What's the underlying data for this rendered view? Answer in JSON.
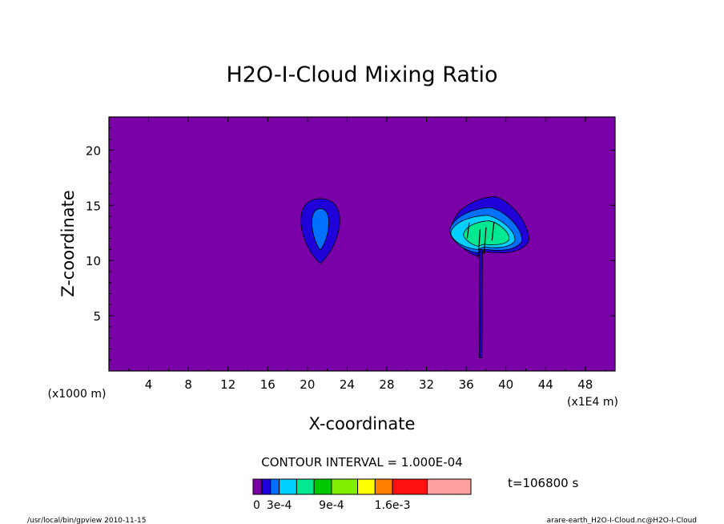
{
  "chart_data": {
    "type": "heatmap",
    "title": "H2O-I-Cloud Mixing Ratio",
    "xlabel": "X-coordinate",
    "ylabel": "Z-coordinate",
    "x_unit_left": "(x1000 m)",
    "x_unit_right": "(x1E4 m)",
    "xlim": [
      0,
      51
    ],
    "ylim": [
      0,
      23
    ],
    "x_ticks": [
      4,
      8,
      12,
      16,
      20,
      24,
      28,
      32,
      36,
      40,
      44,
      48
    ],
    "y_ticks": [
      5,
      10,
      15,
      20
    ],
    "contour_interval_text": "CONTOUR INTERVAL = 1.000E-04",
    "time_text": "t=106800 s",
    "colorbar": {
      "colors": [
        "#7a00a8",
        "#1f00d8",
        "#0070ff",
        "#00d0ff",
        "#00e890",
        "#00c800",
        "#80f000",
        "#ffff00",
        "#ff8000",
        "#ff1010",
        "#ffa0a0"
      ],
      "widths": [
        1,
        1,
        1,
        2,
        2,
        2,
        3,
        2,
        2,
        4,
        5
      ],
      "labels": [
        {
          "text": "0",
          "pos": 0
        },
        {
          "text": "3e-4",
          "pos": 3
        },
        {
          "text": "9e-4",
          "pos": 9
        },
        {
          "text": "1.6e-3",
          "pos": 16
        }
      ]
    },
    "background_color": "#7a00a8",
    "cloud_left": {
      "center": [
        21.3,
        13.1
      ],
      "levels": [
        {
          "rx": 2.3,
          "ry": 2.5,
          "color": "#1f00d8"
        },
        {
          "rx": 1.0,
          "ry": 1.6,
          "color": "#0070ff"
        }
      ]
    },
    "cloud_right": {
      "stem_x": 37.5,
      "stem_bottom": 1.2,
      "stem_top": 11.0,
      "levels": [
        {
          "color": "#1f00d8",
          "x0": 34.6,
          "x1": 42.3,
          "y0": 10.4,
          "y1": 15.8
        },
        {
          "color": "#0070ff",
          "x0": 34.4,
          "x1": 41.6,
          "y0": 10.7,
          "y1": 14.8
        },
        {
          "color": "#00d0ff",
          "x0": 34.5,
          "x1": 40.9,
          "y0": 11.0,
          "y1": 14.1
        },
        {
          "color": "#00e890",
          "x0": 35.8,
          "x1": 40.3,
          "y0": 11.3,
          "y1": 13.6
        }
      ]
    }
  },
  "footer": {
    "left": "/usr/local/bin/gpview  2010-11-15",
    "right": "arare-earth_H2O-I-Cloud.nc@H2O-I-Cloud"
  }
}
